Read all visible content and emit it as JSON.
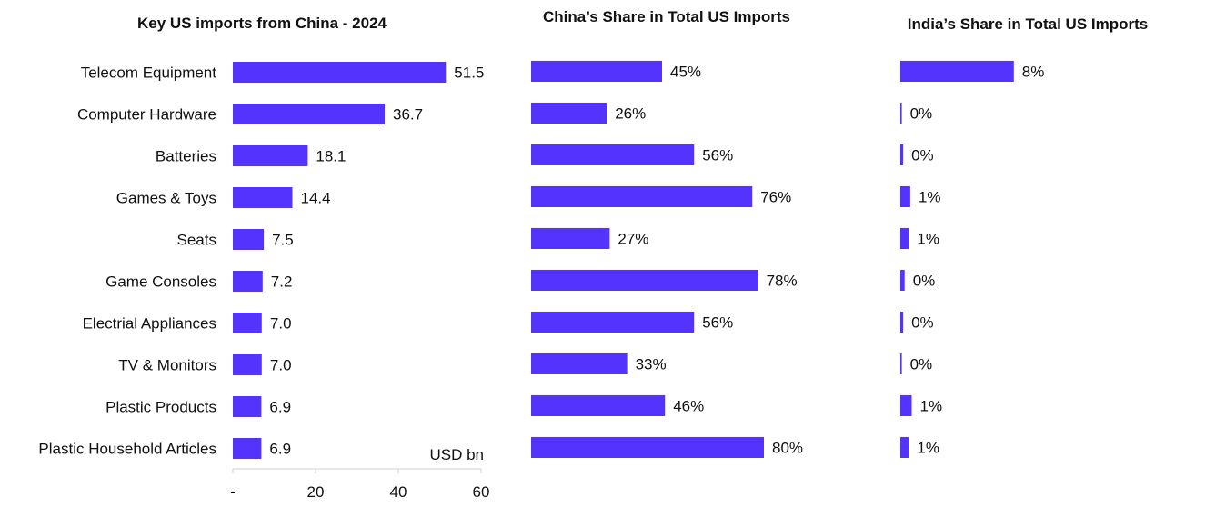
{
  "chart_data": [
    {
      "type": "bar",
      "orientation": "horizontal",
      "title": "Key US imports from China - 2024",
      "unit_label": "USD bn",
      "categories": [
        "Telecom Equipment",
        "Computer Hardware",
        "Batteries",
        "Games & Toys",
        "Seats",
        "Game Consoles",
        "Electrial Appliances",
        "TV & Monitors",
        "Plastic Products",
        "Plastic Household Articles"
      ],
      "values": [
        51.5,
        36.7,
        18.1,
        14.4,
        7.5,
        7.2,
        7.0,
        7.0,
        6.9,
        6.9
      ],
      "value_labels": [
        "51.5",
        "36.7",
        "18.1",
        "14.4",
        "7.5",
        "7.2",
        "7.0",
        "7.0",
        "6.9",
        "6.9"
      ],
      "xlim": [
        0,
        60
      ],
      "xticks": [
        "-",
        "20",
        "40",
        "60"
      ],
      "grid": false,
      "color": "#5533ff"
    },
    {
      "type": "bar",
      "orientation": "horizontal",
      "title": "China’s Share in Total US Imports",
      "categories": [
        "Telecom Equipment",
        "Computer Hardware",
        "Batteries",
        "Games & Toys",
        "Seats",
        "Game Consoles",
        "Electrial Appliances",
        "TV & Monitors",
        "Plastic Products",
        "Plastic Household Articles"
      ],
      "values": [
        45,
        26,
        56,
        76,
        27,
        78,
        56,
        33,
        46,
        80
      ],
      "value_labels": [
        "45%",
        "26%",
        "56%",
        "76%",
        "27%",
        "78%",
        "56%",
        "33%",
        "46%",
        "80%"
      ],
      "xlim": [
        0,
        80
      ],
      "grid": false,
      "color": "#5533ff"
    },
    {
      "type": "bar",
      "orientation": "horizontal",
      "title": "India’s Share in Total US Imports",
      "categories": [
        "Telecom Equipment",
        "Computer Hardware",
        "Batteries",
        "Games & Toys",
        "Seats",
        "Game Consoles",
        "Electrial Appliances",
        "TV & Monitors",
        "Plastic Products",
        "Plastic Household Articles"
      ],
      "values": [
        8,
        0.1,
        0.2,
        0.7,
        0.6,
        0.3,
        0.2,
        0.1,
        0.8,
        0.6
      ],
      "value_labels": [
        "8%",
        "0%",
        "0%",
        "1%",
        "1%",
        "0%",
        "0%",
        "0%",
        "1%",
        "1%"
      ],
      "xlim": [
        0,
        8
      ],
      "grid": false,
      "color": "#5533ff"
    }
  ]
}
